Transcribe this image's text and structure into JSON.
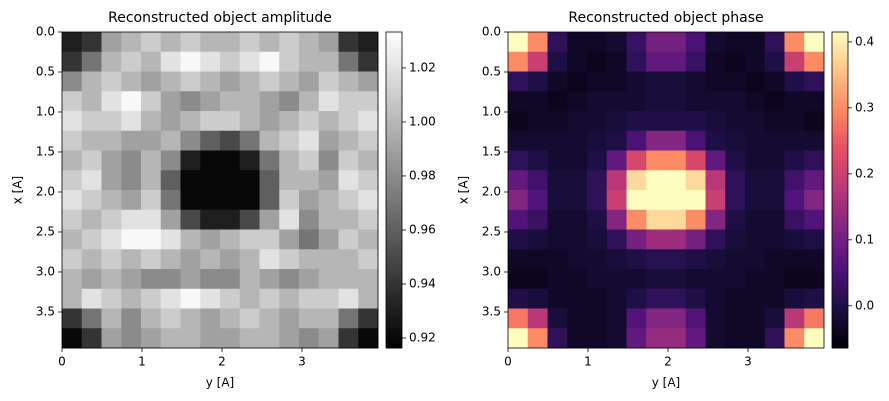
{
  "chart_data": [
    {
      "type": "heatmap",
      "title": "Reconstructed object amplitude",
      "xlabel": "y [A]",
      "ylabel": "x [A]",
      "xlim": [
        0,
        3.95
      ],
      "ylim": [
        3.95,
        0
      ],
      "xticks": [
        0,
        1,
        2,
        3
      ],
      "yticks": [
        {
          "value": 0,
          "label": "0.0"
        },
        0.5,
        {
          "value": 1,
          "label": "1.0"
        },
        1.5,
        {
          "value": 2,
          "label": "2.0"
        },
        2.5,
        {
          "value": 3,
          "label": "3.0"
        },
        3.5
      ],
      "colormap": "gray",
      "clim": [
        0.9163,
        1.0333
      ],
      "cbar_ticks": [
        0.92,
        0.94,
        0.96,
        0.98,
        {
          "value": 1,
          "label": "1.00"
        },
        1.02
      ],
      "z": [
        [
          0.93,
          0.94,
          0.99,
          1.0,
          1.01,
          1.0,
          1.01,
          1.0,
          1.0,
          1.01,
          1.0,
          1.01,
          1.0,
          0.99,
          0.94,
          0.93
        ],
        [
          0.94,
          0.97,
          1.0,
          1.01,
          1.0,
          1.02,
          1.03,
          1.02,
          1.01,
          1.02,
          1.03,
          1.01,
          1.0,
          1.0,
          0.97,
          0.94
        ],
        [
          0.98,
          1.0,
          1.01,
          1.0,
          0.99,
          1.0,
          1.01,
          1.0,
          0.99,
          1.0,
          1.01,
          1.0,
          0.99,
          1.01,
          1.0,
          0.99
        ],
        [
          1.01,
          1.0,
          1.02,
          1.03,
          1.01,
          0.99,
          0.98,
          0.99,
          1.0,
          1.0,
          0.99,
          0.98,
          1.0,
          1.02,
          1.01,
          1.01
        ],
        [
          1.02,
          1.01,
          1.01,
          1.02,
          1.0,
          0.99,
          1.0,
          1.01,
          1.01,
          1.0,
          0.99,
          1.0,
          1.01,
          1.0,
          1.01,
          1.02
        ],
        [
          1.01,
          1.0,
          1.0,
          0.99,
          0.99,
          1.0,
          0.98,
          0.96,
          0.95,
          0.97,
          1.0,
          1.01,
          1.02,
          0.99,
          1.0,
          1.01
        ],
        [
          1.0,
          1.01,
          0.99,
          0.98,
          1.0,
          0.98,
          0.93,
          0.92,
          0.92,
          0.93,
          0.97,
          1.0,
          1.01,
          0.98,
          1.01,
          1.0
        ],
        [
          1.01,
          1.02,
          0.99,
          0.98,
          1.0,
          0.96,
          0.92,
          0.92,
          0.92,
          0.92,
          0.96,
          1.0,
          1.0,
          0.99,
          1.02,
          1.01
        ],
        [
          1.02,
          1.01,
          1.0,
          0.99,
          1.01,
          0.97,
          0.92,
          0.92,
          0.92,
          0.92,
          0.96,
          1.01,
          0.99,
          1.0,
          1.01,
          1.02
        ],
        [
          1.01,
          1.0,
          1.01,
          1.02,
          1.02,
          0.99,
          0.95,
          0.93,
          0.93,
          0.95,
          0.99,
          1.02,
          0.98,
          1.0,
          1.0,
          1.01
        ],
        [
          1.0,
          1.01,
          1.02,
          1.03,
          1.03,
          1.02,
          1.0,
          0.99,
          1.0,
          1.01,
          1.01,
          0.99,
          0.97,
          0.99,
          1.01,
          1.0
        ],
        [
          1.01,
          1.0,
          1.01,
          1.0,
          1.01,
          1.0,
          0.99,
          1.0,
          0.99,
          1.0,
          1.02,
          1.01,
          1.0,
          1.0,
          1.0,
          1.01
        ],
        [
          1.0,
          0.99,
          1.0,
          0.99,
          0.98,
          0.98,
          0.99,
          0.98,
          0.98,
          1.0,
          0.99,
          0.98,
          0.99,
          1.0,
          1.0,
          1.0
        ],
        [
          1.0,
          1.02,
          1.01,
          1.0,
          1.01,
          1.02,
          1.03,
          1.02,
          1.01,
          1.0,
          1.01,
          1.0,
          1.01,
          1.01,
          1.02,
          1.0
        ],
        [
          0.94,
          0.97,
          1.0,
          0.98,
          1.0,
          1.01,
          1.0,
          0.99,
          1.0,
          1.01,
          1.0,
          0.99,
          1.0,
          1.0,
          0.97,
          0.94
        ],
        [
          0.92,
          0.94,
          0.99,
          0.98,
          0.99,
          1.0,
          1.0,
          0.99,
          0.99,
          1.0,
          1.0,
          0.99,
          0.98,
          0.99,
          0.94,
          0.92
        ]
      ]
    },
    {
      "type": "heatmap",
      "title": "Reconstructed object phase",
      "xlabel": "y [A]",
      "ylabel": "x [A]",
      "xlim": [
        0,
        3.95
      ],
      "ylim": [
        3.95,
        0
      ],
      "xticks": [
        0,
        1,
        2,
        3
      ],
      "yticks": [
        {
          "value": 0,
          "label": "0.0"
        },
        0.5,
        {
          "value": 1,
          "label": "1.0"
        },
        1.5,
        {
          "value": 2,
          "label": "2.0"
        },
        2.5,
        {
          "value": 3,
          "label": "3.0"
        },
        3.5
      ],
      "colormap": "magma",
      "clim": [
        -0.064,
        0.415
      ],
      "cbar_ticks": [
        {
          "value": 0,
          "label": "0.0"
        },
        0.1,
        0.2,
        0.3,
        0.4
      ],
      "z": [
        [
          0.42,
          0.3,
          0.02,
          -0.03,
          -0.03,
          -0.02,
          0.03,
          0.1,
          0.1,
          0.05,
          -0.02,
          -0.03,
          -0.03,
          0.02,
          0.3,
          0.42
        ],
        [
          0.3,
          0.2,
          0.0,
          -0.03,
          -0.04,
          -0.03,
          0.02,
          0.08,
          0.08,
          0.03,
          -0.03,
          -0.04,
          -0.03,
          0.0,
          0.2,
          0.3
        ],
        [
          0.02,
          0.0,
          -0.03,
          -0.04,
          -0.03,
          -0.03,
          -0.02,
          -0.01,
          -0.01,
          -0.02,
          -0.03,
          -0.03,
          -0.04,
          -0.03,
          0.0,
          0.02
        ],
        [
          -0.03,
          -0.03,
          -0.04,
          -0.03,
          -0.02,
          -0.02,
          -0.02,
          -0.01,
          -0.01,
          -0.02,
          -0.02,
          -0.02,
          -0.03,
          -0.04,
          -0.03,
          -0.03
        ],
        [
          -0.04,
          -0.03,
          -0.03,
          -0.02,
          -0.02,
          -0.01,
          0.0,
          0.0,
          0.0,
          0.0,
          -0.01,
          -0.02,
          -0.02,
          -0.03,
          -0.03,
          -0.04
        ],
        [
          -0.02,
          -0.02,
          -0.02,
          -0.02,
          -0.01,
          0.0,
          0.05,
          0.12,
          0.12,
          0.05,
          0.0,
          -0.01,
          -0.02,
          -0.02,
          -0.02,
          -0.02
        ],
        [
          0.02,
          0.0,
          -0.02,
          -0.02,
          0.0,
          0.08,
          0.22,
          0.3,
          0.3,
          0.22,
          0.08,
          0.0,
          -0.02,
          -0.02,
          0.0,
          0.02
        ],
        [
          0.08,
          0.04,
          -0.01,
          -0.01,
          0.02,
          0.18,
          0.38,
          0.43,
          0.43,
          0.38,
          0.18,
          0.02,
          -0.01,
          -0.01,
          0.04,
          0.08
        ],
        [
          0.12,
          0.06,
          -0.01,
          -0.01,
          0.02,
          0.2,
          0.42,
          0.43,
          0.43,
          0.42,
          0.2,
          0.02,
          -0.01,
          -0.01,
          0.06,
          0.12
        ],
        [
          0.06,
          0.03,
          -0.02,
          -0.02,
          0.0,
          0.12,
          0.3,
          0.38,
          0.38,
          0.3,
          0.12,
          0.0,
          -0.02,
          -0.02,
          0.03,
          0.06
        ],
        [
          0.0,
          -0.01,
          -0.02,
          -0.02,
          -0.01,
          0.02,
          0.1,
          0.15,
          0.15,
          0.1,
          0.02,
          -0.01,
          -0.02,
          -0.02,
          -0.01,
          0.0
        ],
        [
          -0.03,
          -0.03,
          -0.03,
          -0.02,
          -0.02,
          -0.01,
          0.0,
          0.01,
          0.01,
          0.0,
          -0.01,
          -0.02,
          -0.02,
          -0.03,
          -0.03,
          -0.03
        ],
        [
          -0.04,
          -0.04,
          -0.03,
          -0.03,
          -0.02,
          -0.02,
          -0.02,
          -0.01,
          -0.01,
          -0.02,
          -0.02,
          -0.02,
          -0.03,
          -0.03,
          -0.04,
          -0.04
        ],
        [
          0.0,
          -0.01,
          -0.03,
          -0.03,
          -0.03,
          -0.02,
          0.0,
          0.02,
          0.02,
          0.0,
          -0.02,
          -0.03,
          -0.03,
          -0.03,
          -0.01,
          0.0
        ],
        [
          0.28,
          0.18,
          -0.01,
          -0.03,
          -0.03,
          -0.02,
          0.06,
          0.12,
          0.12,
          0.06,
          -0.02,
          -0.03,
          -0.03,
          -0.01,
          0.18,
          0.28
        ],
        [
          0.42,
          0.3,
          0.02,
          -0.03,
          -0.03,
          -0.02,
          0.08,
          0.14,
          0.14,
          0.08,
          -0.02,
          -0.03,
          -0.03,
          0.02,
          0.3,
          0.42
        ]
      ]
    }
  ]
}
